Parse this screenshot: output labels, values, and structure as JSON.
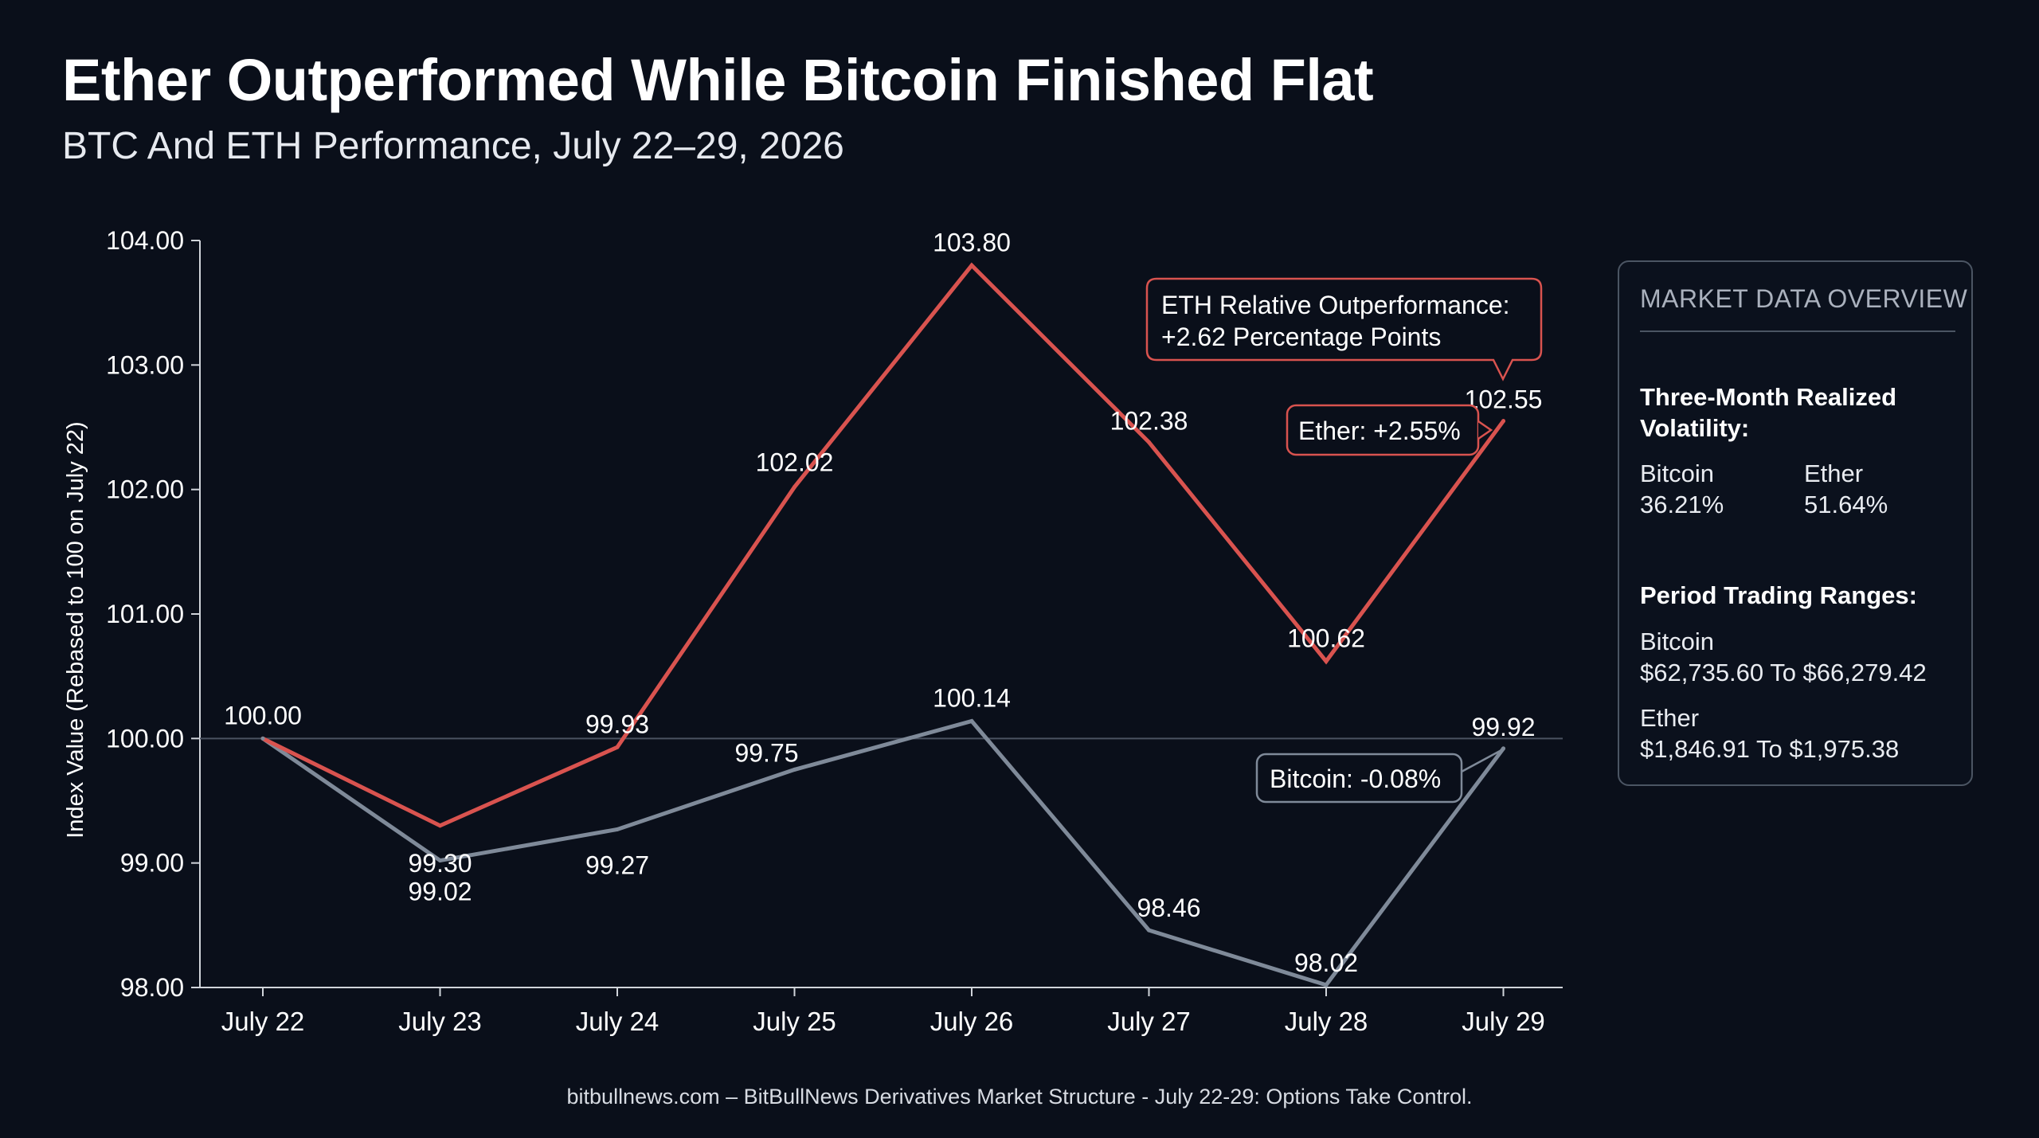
{
  "header": {
    "title": "Ether Outperformed While Bitcoin Finished Flat",
    "subtitle": "BTC And ETH Performance, July 22–29, 2026"
  },
  "chart_data": {
    "type": "line",
    "title": "Ether Outperformed While Bitcoin Finished Flat",
    "subtitle": "BTC And ETH Performance, July 22–29, 2026",
    "xlabel": "",
    "ylabel": "Index Value (Rebased to 100 on July 22)",
    "categories": [
      "July 22",
      "July 23",
      "July 24",
      "July 25",
      "July 26",
      "July 27",
      "July 28",
      "July 29"
    ],
    "ylim": [
      98,
      104
    ],
    "yticks": [
      "98.00",
      "99.00",
      "100.00",
      "101.00",
      "102.00",
      "103.00",
      "104.00"
    ],
    "reference_line": 100,
    "grid": false,
    "series": [
      {
        "name": "Ether",
        "color": "#d9534f",
        "values": [
          100.0,
          99.3,
          99.93,
          102.02,
          103.8,
          102.38,
          100.62,
          102.55
        ],
        "labels": [
          "100.00",
          "99.30",
          "99.93",
          "102.02",
          "103.80",
          "102.38",
          "100.62",
          "102.55"
        ]
      },
      {
        "name": "Bitcoin",
        "color": "#7f8a99",
        "values": [
          100.0,
          99.02,
          99.27,
          99.75,
          100.14,
          98.46,
          98.02,
          99.92
        ],
        "labels": [
          "",
          "99.02",
          "99.27",
          "99.75",
          "100.14",
          "98.46",
          "98.02",
          "99.92"
        ]
      }
    ],
    "annotations": {
      "outperformance": [
        "ETH Relative Outperformance:",
        "+2.62 Percentage Points"
      ],
      "ether_end": "Ether: +2.55%",
      "bitcoin_end": "Bitcoin: -0.08%"
    }
  },
  "panel": {
    "title": "MARKET DATA OVERVIEW",
    "volatility_heading": "Three-Month Realized Volatility:",
    "btc_label": "Bitcoin",
    "btc_vol": "36.21%",
    "eth_label": "Ether",
    "eth_vol": "51.64%",
    "range_heading": "Period Trading Ranges:",
    "btc_range_label": "Bitcoin",
    "btc_range": "$62,735.60 To $66,279.42",
    "eth_range_label": "Ether",
    "eth_range": "$1,846.91 To $1,975.38"
  },
  "footer": {
    "source": "bitbullnews.com – BitBullNews Derivatives Market Structure - July 22-29: Options Take Control."
  },
  "colors": {
    "background": "#0a0f1a",
    "ether": "#d9534f",
    "bitcoin": "#7f8a99",
    "axis": "#d0d4da"
  }
}
